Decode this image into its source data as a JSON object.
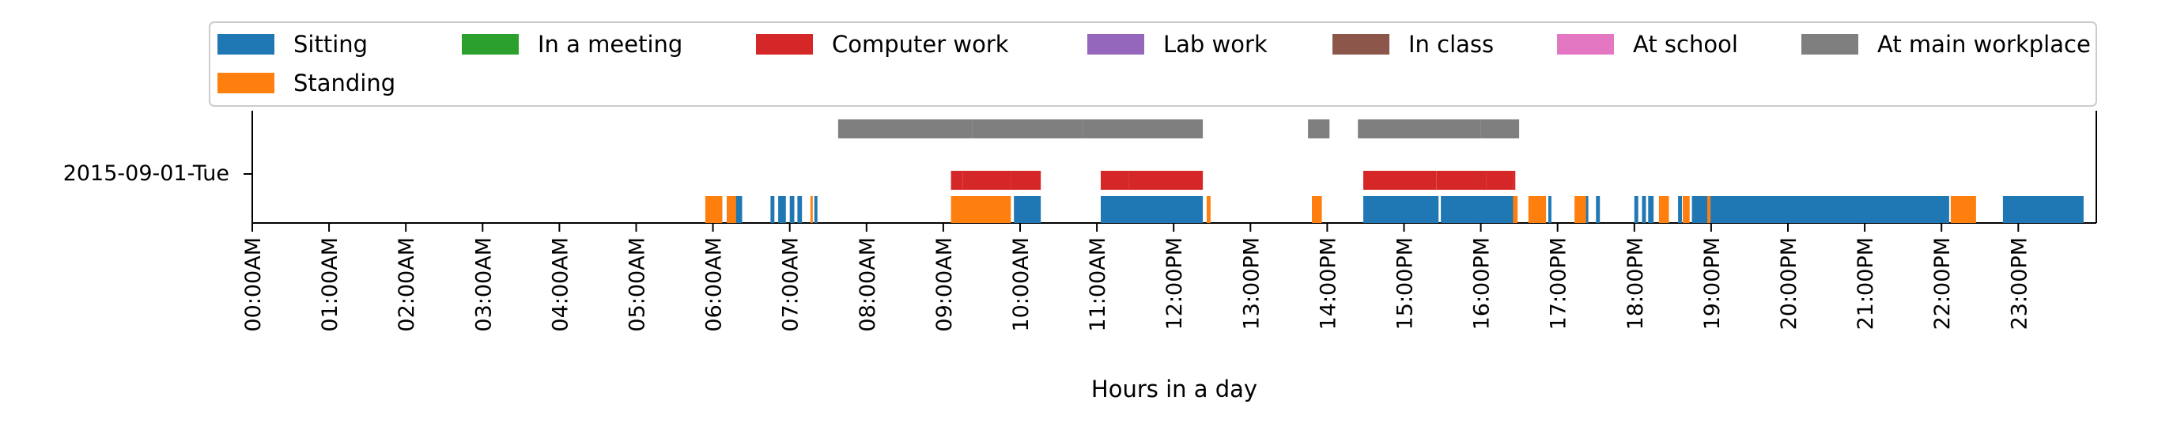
{
  "chart_data": {
    "type": "timeline",
    "xlabel": "Hours in a day",
    "y_category": "2015-09-01-Tue",
    "xlim_hours": [
      0,
      24
    ],
    "x_tick_labels": [
      "00:00AM",
      "01:00AM",
      "02:00AM",
      "03:00AM",
      "04:00AM",
      "05:00AM",
      "06:00AM",
      "07:00AM",
      "08:00AM",
      "09:00AM",
      "10:00AM",
      "11:00AM",
      "12:00PM",
      "13:00PM",
      "14:00PM",
      "15:00PM",
      "16:00PM",
      "17:00PM",
      "18:00PM",
      "19:00PM",
      "20:00PM",
      "21:00PM",
      "22:00PM",
      "23:00PM"
    ],
    "legend_location": "top",
    "legend": [
      {
        "label": "Sitting",
        "color": "#1f77b4"
      },
      {
        "label": "In a meeting",
        "color": "#2ca02c"
      },
      {
        "label": "Computer work",
        "color": "#d62728"
      },
      {
        "label": "Lab work",
        "color": "#9467bd"
      },
      {
        "label": "In class",
        "color": "#8c564b"
      },
      {
        "label": "At school",
        "color": "#e377c2"
      },
      {
        "label": "At main workplace",
        "color": "#7f7f7f"
      },
      {
        "label": "Standing",
        "color": "#ff7f0e"
      }
    ],
    "series": [
      {
        "activity": "At main workplace",
        "color": "#7f7f7f",
        "lane": 2,
        "intervals": [
          [
            7.63,
            9.38
          ],
          [
            9.38,
            10.82
          ],
          [
            10.82,
            11.55
          ],
          [
            11.55,
            12.38
          ],
          [
            13.75,
            14.03
          ],
          [
            14.4,
            16.0
          ],
          [
            16.0,
            16.5
          ]
        ]
      },
      {
        "activity": "Computer work",
        "color": "#d62728",
        "lane": 1,
        "intervals": [
          [
            9.1,
            9.25
          ],
          [
            9.25,
            9.88
          ],
          [
            9.88,
            10.27
          ],
          [
            11.05,
            11.42
          ],
          [
            11.42,
            12.38
          ],
          [
            14.47,
            15.42
          ],
          [
            15.42,
            16.07
          ],
          [
            16.07,
            16.42
          ],
          [
            16.42,
            16.45
          ]
        ]
      },
      {
        "activity": "Sitting",
        "color": "#1f77b4",
        "lane": 0,
        "intervals": [
          [
            6.08,
            6.12
          ],
          [
            6.18,
            6.22
          ],
          [
            6.28,
            6.38
          ],
          [
            6.75,
            6.8
          ],
          [
            6.85,
            6.95
          ],
          [
            7.0,
            7.06
          ],
          [
            7.1,
            7.16
          ],
          [
            7.32,
            7.36
          ],
          [
            9.92,
            10.27
          ],
          [
            11.05,
            12.38
          ],
          [
            14.47,
            15.45
          ],
          [
            15.48,
            16.45
          ],
          [
            16.88,
            16.92
          ],
          [
            17.35,
            17.4
          ],
          [
            17.5,
            17.55
          ],
          [
            18.0,
            18.05
          ],
          [
            18.1,
            18.15
          ],
          [
            18.18,
            18.25
          ],
          [
            18.4,
            18.45
          ],
          [
            18.57,
            18.62
          ],
          [
            18.75,
            19.0
          ],
          [
            19.0,
            22.1
          ],
          [
            22.8,
            23.85
          ]
        ]
      },
      {
        "activity": "Standing",
        "color": "#ff7f0e",
        "lane": 0,
        "intervals": [
          [
            5.9,
            6.12
          ],
          [
            6.18,
            6.3
          ],
          [
            7.27,
            7.3
          ],
          [
            9.1,
            9.88
          ],
          [
            12.43,
            12.48
          ],
          [
            13.8,
            13.93
          ],
          [
            16.42,
            16.48
          ],
          [
            16.62,
            16.85
          ],
          [
            17.22,
            17.37
          ],
          [
            18.32,
            18.45
          ],
          [
            18.63,
            18.72
          ],
          [
            18.95,
            18.99
          ],
          [
            22.12,
            22.45
          ]
        ]
      }
    ]
  }
}
